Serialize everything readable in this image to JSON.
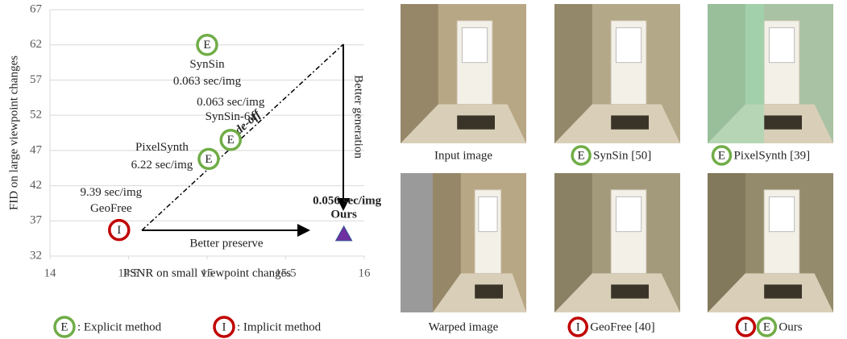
{
  "chart_data": {
    "type": "scatter",
    "xlabel": "PSNR on small viewpoint changes",
    "ylabel": "FID on large viewpoint changes",
    "xlim": [
      14,
      16
    ],
    "ylim": [
      32,
      67
    ],
    "xticks": [
      14,
      14.5,
      15,
      15.5,
      16
    ],
    "yticks": [
      32,
      37,
      42,
      47,
      52,
      57,
      62,
      67
    ],
    "grid": true,
    "series": [
      {
        "name": "SynSin",
        "speed": "0.063 sec/img",
        "marker": "E",
        "color": "#70ad47",
        "x": [
          15.0
        ],
        "values": [
          62
        ]
      },
      {
        "name": "SynSin-6x",
        "speed": "0.063 sec/img",
        "marker": "E",
        "color": "#70ad47",
        "x": [
          15.15
        ],
        "values": [
          48.5
        ]
      },
      {
        "name": "PixelSynth",
        "speed": "6.22 sec/img",
        "marker": "E",
        "color": "#70ad47",
        "x": [
          15.01
        ],
        "values": [
          45.8
        ]
      },
      {
        "name": "GeoFree",
        "speed": "9.39 sec/img",
        "marker": "I",
        "color": "#c00000",
        "x": [
          14.44
        ],
        "values": [
          35.7
        ]
      },
      {
        "name": "Ours",
        "speed": "0.056 sec/img",
        "marker": "triangle",
        "color": "#7030a0",
        "x": [
          15.87
        ],
        "values": [
          35.1
        ]
      }
    ],
    "annotations": [
      "Trade-off",
      "Better generation",
      "Better preserve"
    ],
    "legend": [
      {
        "marker": "E",
        "color": "#70ad47",
        "label": ": Explicit method"
      },
      {
        "marker": "I",
        "color": "#c00000",
        "label": ": Implicit method"
      }
    ]
  },
  "images": {
    "captions": [
      {
        "badges": [],
        "text": "Input image"
      },
      {
        "badges": [
          "E"
        ],
        "text": "SynSin [50]"
      },
      {
        "badges": [
          "E"
        ],
        "text": "PixelSynth [39]"
      },
      {
        "badges": [],
        "text": "Warped image"
      },
      {
        "badges": [
          "I"
        ],
        "text": "GeoFree [40]"
      },
      {
        "badges": [
          "I",
          "E"
        ],
        "text": "Ours"
      }
    ]
  }
}
